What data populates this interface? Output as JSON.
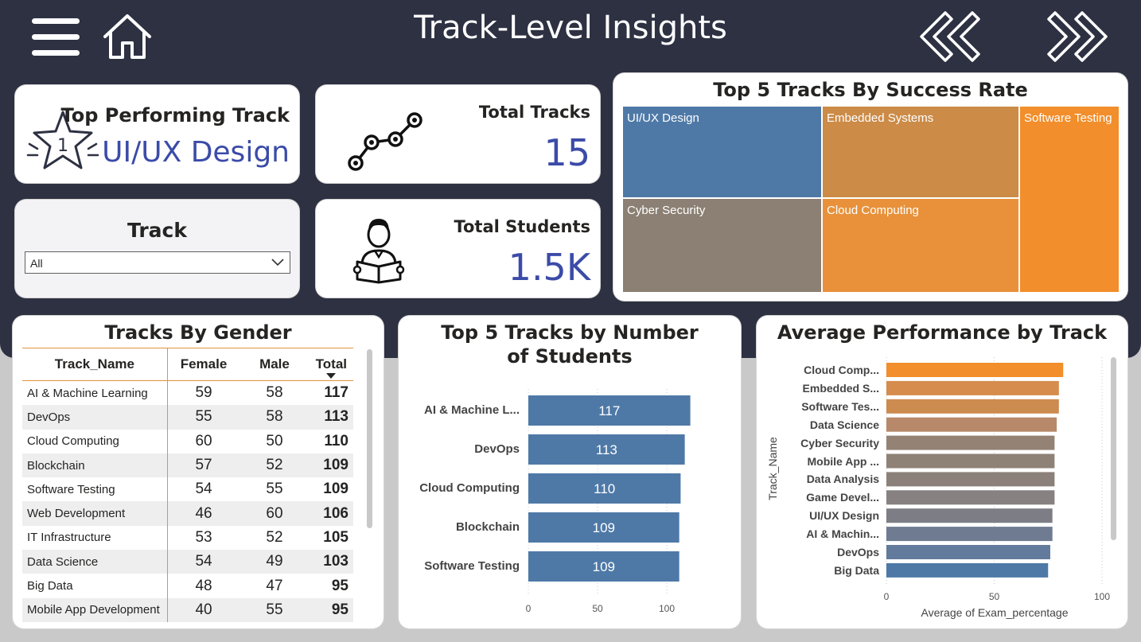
{
  "header": {
    "title": "Track-Level Insights",
    "menu_icon": "hamburger-menu-icon",
    "home_icon": "home-icon",
    "back_icon": "double-chevron-left-icon",
    "forward_icon": "double-chevron-right-icon"
  },
  "kpis": {
    "top_track": {
      "label": "Top Performing Track",
      "value": "UI/UX Design",
      "badge": "1",
      "icon": "star-badge-icon"
    },
    "total_tracks": {
      "label": "Total Tracks",
      "value": "15",
      "icon": "track-path-icon"
    },
    "total_students": {
      "label": "Total Students",
      "value": "1.5K",
      "icon": "student-reading-icon"
    }
  },
  "filter": {
    "label": "Track",
    "selected": "All"
  },
  "treemap": {
    "title": "Top 5 Tracks By Success Rate",
    "items": [
      {
        "label": "UI/UX Design",
        "color": "#4e79a7"
      },
      {
        "label": "Embedded Systems",
        "color": "#cc8b47"
      },
      {
        "label": "Software Testing",
        "color": "#f28e2b"
      },
      {
        "label": "Cyber Security",
        "color": "#8b8073"
      },
      {
        "label": "Cloud Computing",
        "color": "#e8913a"
      }
    ]
  },
  "gender_table": {
    "title": "Tracks By Gender",
    "columns": [
      "Track_Name",
      "Female",
      "Male",
      "Total"
    ],
    "rows": [
      [
        "AI & Machine Learning",
        "59",
        "58",
        "117"
      ],
      [
        "DevOps",
        "55",
        "58",
        "113"
      ],
      [
        "Cloud Computing",
        "60",
        "50",
        "110"
      ],
      [
        "Blockchain",
        "57",
        "52",
        "109"
      ],
      [
        "Software Testing",
        "54",
        "55",
        "109"
      ],
      [
        "Web Development",
        "46",
        "60",
        "106"
      ],
      [
        "IT Infrastructure",
        "53",
        "52",
        "105"
      ],
      [
        "Data Science",
        "54",
        "49",
        "103"
      ],
      [
        "Big Data",
        "48",
        "47",
        "95"
      ],
      [
        "Mobile App Development",
        "40",
        "55",
        "95"
      ]
    ]
  },
  "chart_data": [
    {
      "type": "bar",
      "title": "Top 5 Tracks by Number of Students",
      "categories": [
        "AI & Machine L...",
        "DevOps",
        "Cloud Computing",
        "Blockchain",
        "Software Testing"
      ],
      "values": [
        117,
        113,
        110,
        109,
        109
      ],
      "xlim": [
        0,
        120
      ],
      "ticks": [
        0,
        50,
        100
      ],
      "color": "#4e79a7"
    },
    {
      "type": "bar",
      "title": "Average Performance by Track",
      "categories": [
        "Cloud Comp...",
        "Embedded S...",
        "Software Tes...",
        "Data Science",
        "Cyber Security",
        "Mobile App ...",
        "Data Analysis",
        "Game Devel...",
        "UI/UX Design",
        "AI & Machin...",
        "DevOps",
        "Big Data"
      ],
      "values": [
        82,
        80,
        80,
        79,
        78,
        78,
        78,
        78,
        77,
        77,
        76,
        75
      ],
      "colors": [
        "#f28e2b",
        "#d58c4c",
        "#cc8b4f",
        "#b7896a",
        "#948374",
        "#8e8277",
        "#8b817a",
        "#878181",
        "#7d7e85",
        "#6f7b90",
        "#627a9c",
        "#4e79a7"
      ],
      "xlabel": "Average of Exam_percentage",
      "ylabel": "Track_Name",
      "xlim": [
        0,
        100
      ],
      "ticks": [
        0,
        50,
        100
      ]
    }
  ]
}
